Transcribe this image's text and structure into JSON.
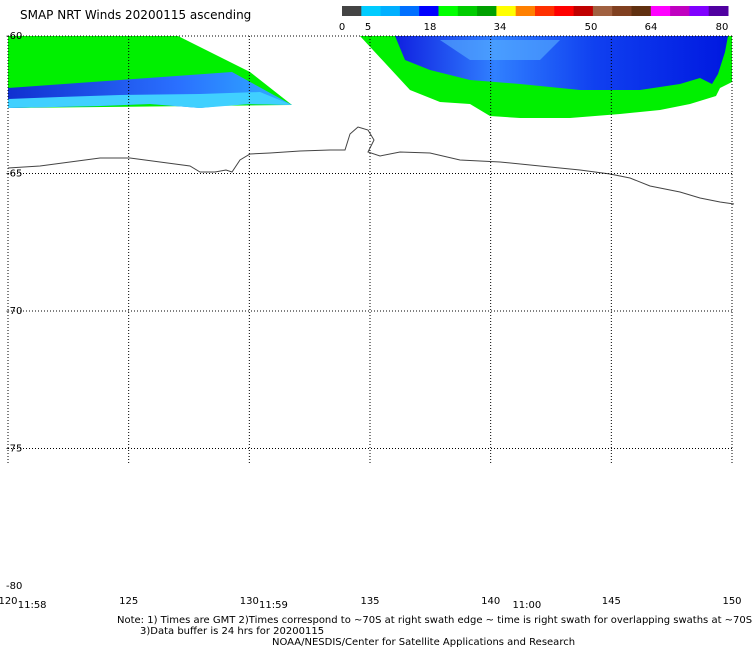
{
  "title": "SMAP NRT Winds 20200115 ascending",
  "colorbar": {
    "colors": [
      "#444444",
      "#00ccff",
      "#00b0ff",
      "#0070ff",
      "#0000ff",
      "#00ff00",
      "#00cc00",
      "#00a000",
      "#ffff00",
      "#ff8000",
      "#ff3000",
      "#ff0000",
      "#c00000",
      "#a06040",
      "#804020",
      "#603010",
      "#ff00ff",
      "#c000c0",
      "#8000ff",
      "#5000a0"
    ],
    "ticks": [
      "0",
      "5",
      "18",
      "34",
      "50",
      "64",
      "80"
    ]
  },
  "map": {
    "lon_range": [
      120,
      150
    ],
    "lat_range": [
      -80,
      -60
    ],
    "lon_labels": [
      "120",
      "125",
      "130",
      "135",
      "140",
      "145",
      "150"
    ],
    "lat_labels": [
      "-60",
      "-65",
      "-70",
      "-75",
      "-80"
    ],
    "time_labels": [
      {
        "text": "11:58",
        "lon": 121
      },
      {
        "text": "11:59",
        "lon": 131
      },
      {
        "text": "11:00",
        "lon": 141.5
      }
    ]
  },
  "notes": {
    "line1": "Note: 1) Times are GMT 2)Times correspond to ~70S at right swath edge ~ time is right swath for overlapping swaths at ~70S",
    "line2": "3)Data buffer is 24 hrs for 20200115",
    "line3": "NOAA/NESDIS/Center for Satellite Applications and Research"
  }
}
